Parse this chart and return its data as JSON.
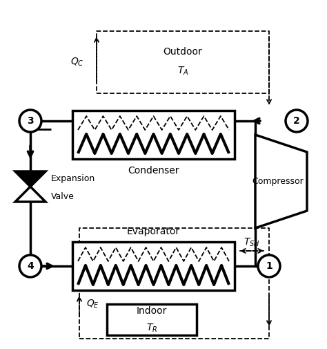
{
  "bg_color": "#ffffff",
  "line_color": "#000000",
  "dashed_color": "#000000",
  "lw_main": 2.5,
  "lw_dashed": 1.3,
  "fig_w": 4.74,
  "fig_h": 5.05,
  "dpi": 100,
  "condenser_label": "Condenser",
  "evaporator_label": "Evaporator",
  "compressor_label": "Compressor",
  "expansion_label1": "Expansion",
  "expansion_label2": "Valve",
  "outdoor_label1": "Outdoor",
  "outdoor_label2": "$T_A$",
  "indoor_label1": "Indoor",
  "indoor_label2": "$T_R$",
  "qc_label": "$Q_C$",
  "qe_label": "$Q_E$",
  "tsh_label": "$T_{SH}$",
  "node1_label": "1",
  "node2_label": "2",
  "node3_label": "3",
  "node4_label": "4",
  "note_font": 10
}
